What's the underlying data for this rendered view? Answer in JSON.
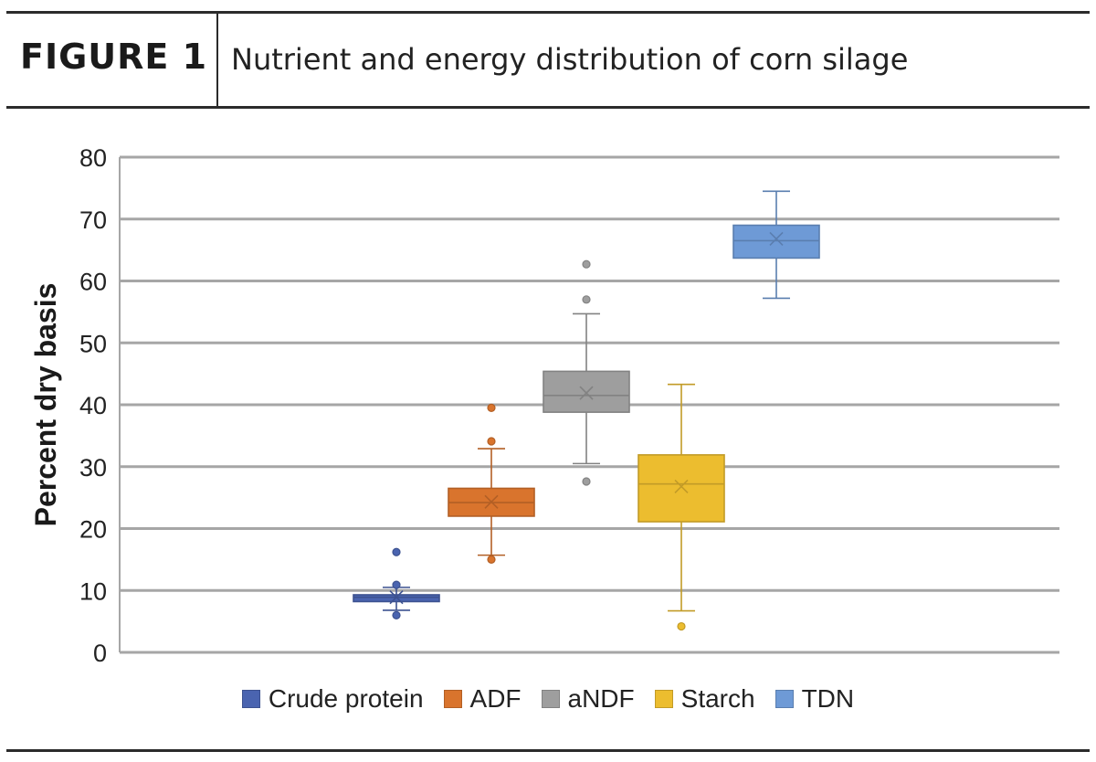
{
  "figure": {
    "label": "FIGURE 1",
    "title": "Nutrient and energy distribution of corn silage"
  },
  "chart_data": {
    "type": "box",
    "title": "",
    "xlabel": "",
    "ylabel": "Percent dry basis",
    "ylim": [
      0,
      80
    ],
    "yticks": [
      0,
      10,
      20,
      30,
      40,
      50,
      60,
      70,
      80
    ],
    "grid": true,
    "legend_position": "bottom",
    "series": [
      {
        "name": "Crude protein",
        "color": "#4a64b0",
        "whisker_low": 6.8,
        "q1": 8.2,
        "median": 8.9,
        "q3": 9.3,
        "whisker_high": 10.5,
        "mean": 8.9,
        "outliers": [
          16.2,
          10.9,
          6.0
        ]
      },
      {
        "name": "ADF",
        "color": "#d9742d",
        "whisker_low": 15.7,
        "q1": 22.0,
        "median": 24.2,
        "q3": 26.5,
        "whisker_high": 32.9,
        "mean": 24.3,
        "outliers": [
          39.5,
          34.1,
          15.0
        ]
      },
      {
        "name": "aNDF",
        "color": "#9e9e9e",
        "whisker_low": 30.5,
        "q1": 38.8,
        "median": 41.5,
        "q3": 45.4,
        "whisker_high": 54.7,
        "mean": 41.9,
        "outliers": [
          62.7,
          57.0,
          27.6
        ]
      },
      {
        "name": "Starch",
        "color": "#ecbd2f",
        "whisker_low": 6.7,
        "q1": 21.1,
        "median": 27.2,
        "q3": 31.9,
        "whisker_high": 43.3,
        "mean": 26.8,
        "outliers": [
          4.2
        ]
      },
      {
        "name": "TDN",
        "color": "#6e9ad6",
        "whisker_low": 57.2,
        "q1": 63.7,
        "median": 66.5,
        "q3": 69.0,
        "whisker_high": 74.5,
        "mean": 66.8,
        "outliers": []
      }
    ]
  }
}
